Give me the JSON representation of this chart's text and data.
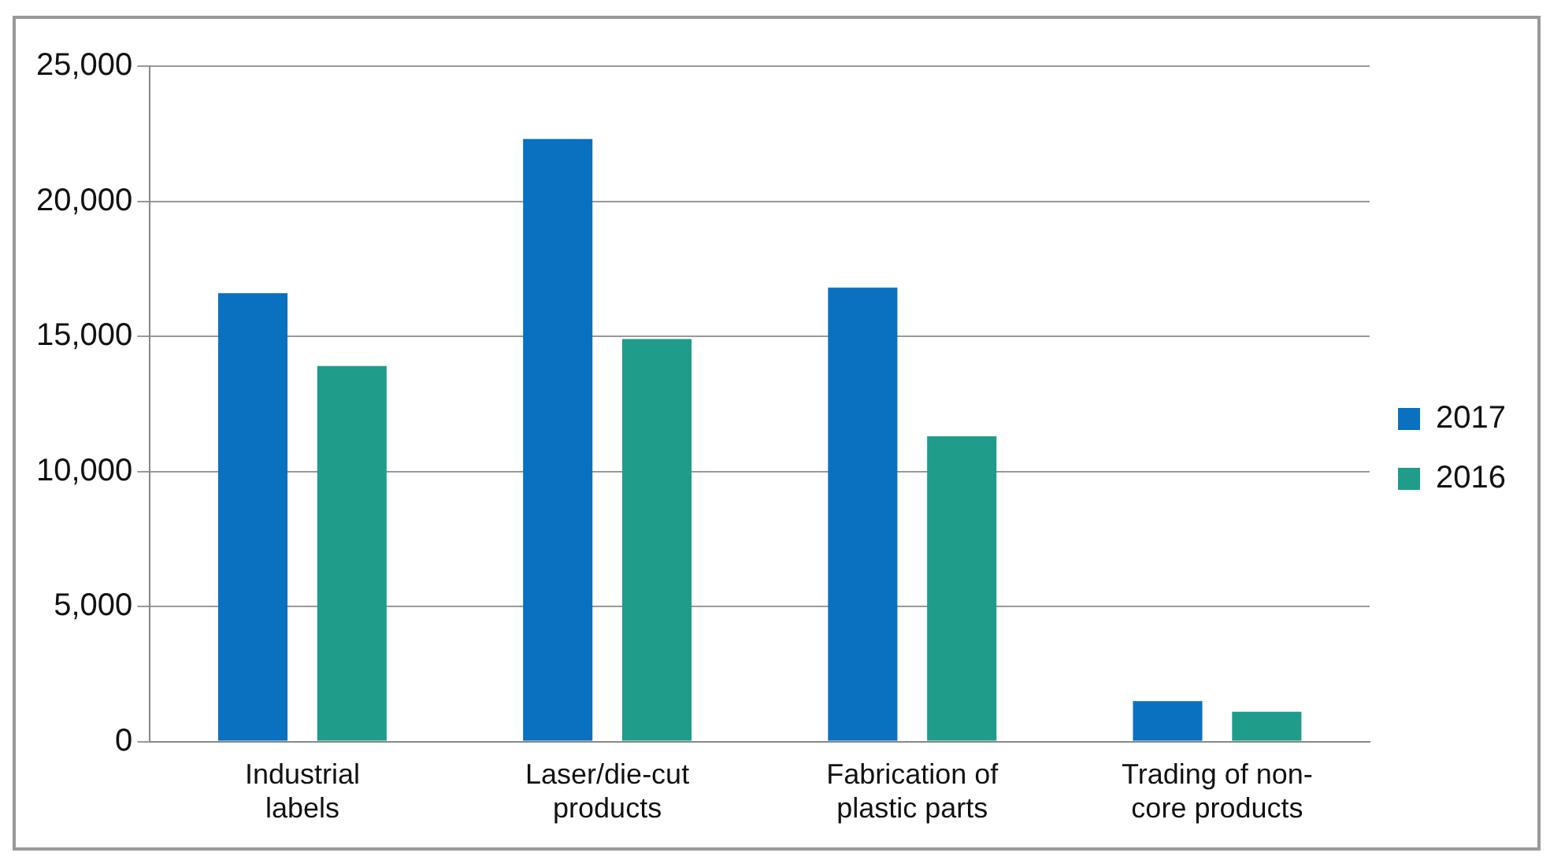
{
  "chart_data": {
    "type": "bar",
    "categories": [
      "Industrial labels",
      "Laser/die-cut products",
      "Fabrication of plastic parts",
      "Trading of non-core products"
    ],
    "series": [
      {
        "name": "2017",
        "color": "#0a70c0",
        "values": [
          16600,
          22300,
          16800,
          1500
        ]
      },
      {
        "name": "2016",
        "color": "#1f9c8a",
        "values": [
          13900,
          14900,
          11300,
          1100
        ]
      }
    ],
    "ylim": [
      0,
      25000
    ],
    "yticks": [
      0,
      {
        "value": 5000,
        "label": "5,000"
      },
      {
        "value": 10000,
        "label": "10,000"
      },
      {
        "value": 15000,
        "label": "15,000"
      },
      {
        "value": 20000,
        "label": "20,000"
      },
      {
        "value": 25000,
        "label": "25,000"
      }
    ],
    "grid": "y",
    "legend": "right"
  }
}
